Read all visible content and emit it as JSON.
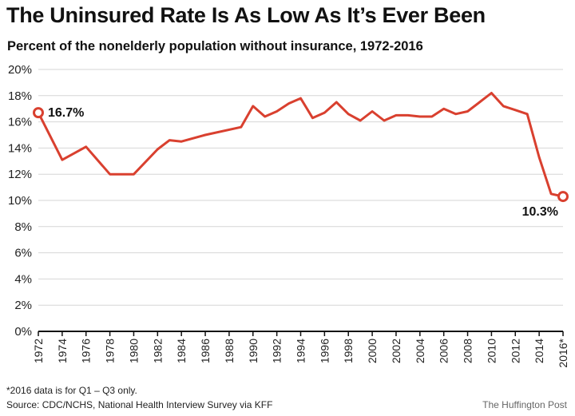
{
  "chart_data": {
    "type": "line",
    "title": "The Uninsured Rate Is As Low As It’s Ever Been",
    "subtitle": "Percent of the nonelderly population without insurance, 1972-2016",
    "ylim": [
      0,
      20
    ],
    "yticks": [
      "0%",
      "2%",
      "4%",
      "6%",
      "8%",
      "10%",
      "12%",
      "14%",
      "16%",
      "18%",
      "20%"
    ],
    "xlim": [
      1972,
      2016
    ],
    "xticks": [
      "1972",
      "1974",
      "1976",
      "1978",
      "1980",
      "1982",
      "1984",
      "1986",
      "1988",
      "1990",
      "1992",
      "1994",
      "1996",
      "1998",
      "2000",
      "2002",
      "2004",
      "2006",
      "2008",
      "2010",
      "2012",
      "2014",
      "2016*"
    ],
    "grid": true,
    "color": "#d9402f",
    "series": [
      {
        "x": [
          1972,
          1974,
          1976,
          1978,
          1980,
          1982,
          1983,
          1984,
          1986,
          1989,
          1990,
          1991,
          1992,
          1993,
          1994,
          1995,
          1996,
          1997,
          1998,
          1999,
          2000,
          2001,
          2002,
          2003,
          2004,
          2005,
          2006,
          2007,
          2008,
          2009,
          2010,
          2011,
          2012,
          2013,
          2014,
          2015,
          2016
        ],
        "values": [
          16.7,
          13.1,
          14.1,
          12.0,
          12.0,
          13.9,
          14.6,
          14.5,
          15.0,
          15.6,
          17.2,
          16.4,
          16.8,
          17.4,
          17.8,
          16.3,
          16.7,
          17.5,
          16.6,
          16.1,
          16.8,
          16.1,
          16.5,
          16.5,
          16.4,
          16.4,
          17.0,
          16.6,
          16.8,
          17.5,
          18.2,
          17.2,
          16.9,
          16.6,
          13.3,
          10.5,
          10.3
        ]
      }
    ],
    "annotations": [
      {
        "x": 1972,
        "y": 16.7,
        "text": "16.7%"
      },
      {
        "x": 2016,
        "y": 10.3,
        "text": "10.3%"
      }
    ]
  },
  "footnote": "*2016 data is for Q1 – Q3 only.",
  "source": "Source: CDC/NCHS, National Health Interview Survey via KFF",
  "credit": "The Huffington Post"
}
